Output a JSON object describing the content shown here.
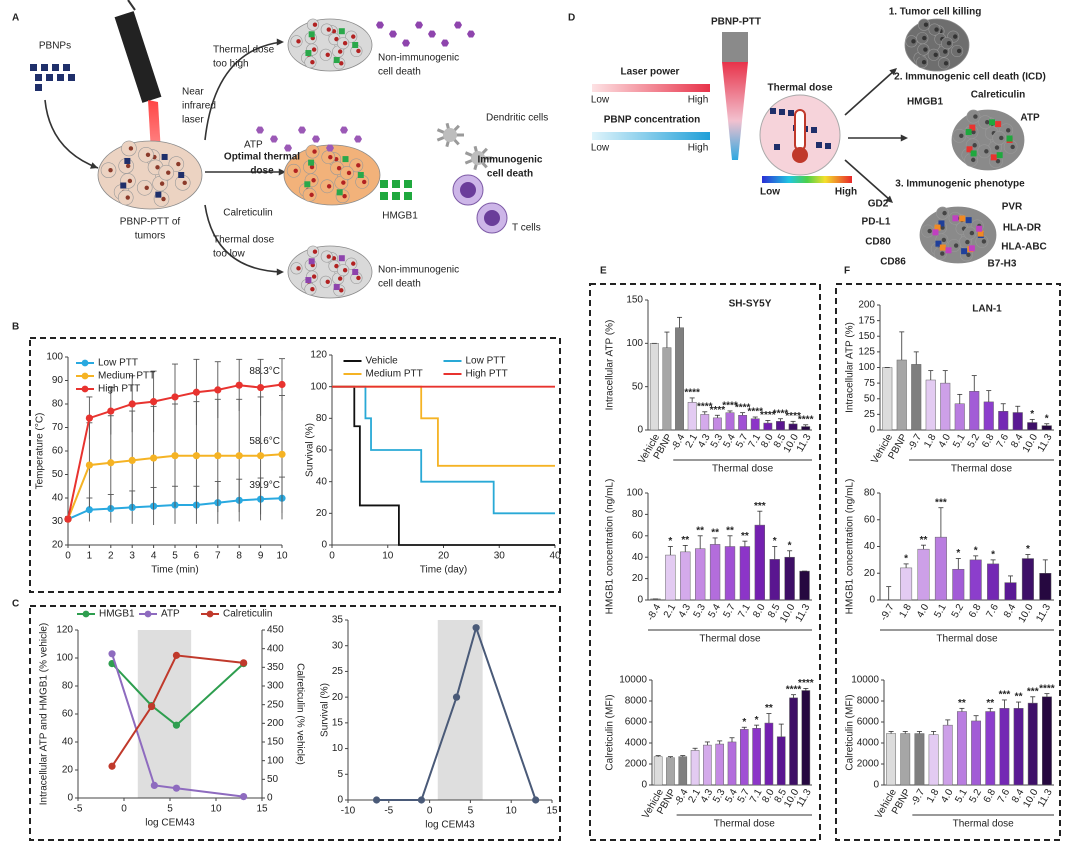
{
  "panel_labels": [
    "A",
    "B",
    "C",
    "D",
    "E",
    "F"
  ],
  "diagram_a": {
    "pbnps": [
      "PBNPs"
    ],
    "laser": [
      "Near",
      "infrared",
      "laser"
    ],
    "too_high": [
      "Thermal dose",
      "too high"
    ],
    "noncd_top": [
      "Non-immunogenic",
      "cell death"
    ],
    "atp": [
      "ATP"
    ],
    "dendritic": [
      "Dendritic cells"
    ],
    "optimal": [
      "Optimal thermal",
      "dose"
    ],
    "icd": [
      "Immunogenic",
      "cell death"
    ],
    "calreticulin": [
      "Calreticulin"
    ],
    "hmgb1": [
      "HMGB1"
    ],
    "tcells": [
      "T cells"
    ],
    "pbnp_ptt": [
      "PBNP-PTT of",
      "tumors"
    ],
    "too_low": [
      "Thermal dose",
      "too low"
    ],
    "noncd_bottom": [
      "Non-immunogenic",
      "cell death"
    ]
  },
  "diagram_d": {
    "device": [
      "PBNP-PTT"
    ],
    "killing": [
      "1. Tumor cell killing"
    ],
    "laser_power": [
      "Laser power"
    ],
    "lp_low": [
      "Low"
    ],
    "lp_high": [
      "High"
    ],
    "conc": [
      "PBNP concentration"
    ],
    "c_low": [
      "Low"
    ],
    "c_high": [
      "High"
    ],
    "thermal": [
      "Thermal dose"
    ],
    "t_low": [
      "Low"
    ],
    "t_high": [
      "High"
    ],
    "icd": [
      "2. Immunogenic cell death (ICD)"
    ],
    "hmgb1": [
      "HMGB1"
    ],
    "calreticulin": [
      "Calreticulin"
    ],
    "atp": [
      "ATP"
    ],
    "phenotype": [
      "3. Immunogenic phenotype"
    ],
    "gd2": [
      "GD2"
    ],
    "pdl1": [
      "PD-L1"
    ],
    "cd80": [
      "CD80"
    ],
    "cd86": [
      "CD86"
    ],
    "pvr": [
      "PVR"
    ],
    "hladr": [
      "HLA-DR"
    ],
    "hlaabc": [
      "HLA-ABC"
    ],
    "b7h3": [
      "B7-H3"
    ]
  },
  "chart_data": [
    {
      "type": "line",
      "xlabel": "Time (min)",
      "ylabel": "Temperature (°C)",
      "legend": "upper left",
      "markers": true,
      "x": [
        0,
        1,
        2,
        3,
        4,
        5,
        6,
        7,
        8,
        9,
        10
      ],
      "xlim": [
        0,
        10
      ],
      "xticks": [
        0,
        1,
        2,
        3,
        4,
        5,
        6,
        7,
        8,
        9,
        10
      ],
      "ylim": [
        20,
        100
      ],
      "yticks": [
        20,
        30,
        40,
        50,
        60,
        70,
        80,
        90,
        100
      ],
      "series": [
        {
          "name": "Low PTT",
          "color": "#29a9e0",
          "values": [
            31,
            35,
            35.5,
            36,
            36.5,
            37,
            37,
            38,
            39,
            39.5,
            39.9
          ],
          "errors": [
            1,
            5,
            6,
            7,
            8,
            8,
            8,
            9,
            9,
            9,
            9
          ]
        },
        {
          "name": "Medium PTT",
          "color": "#f5b324",
          "values": [
            31,
            54,
            55,
            56,
            57,
            58,
            58,
            58,
            58,
            58,
            58.6
          ],
          "errors": [
            1,
            18,
            20,
            21,
            22,
            22,
            23,
            24,
            24,
            25,
            25
          ]
        },
        {
          "name": "High PTT",
          "color": "#e8332f",
          "values": [
            31,
            74,
            77,
            80,
            81,
            83,
            85,
            86,
            88,
            87,
            88.3
          ],
          "errors": [
            1,
            9,
            10,
            12,
            13,
            14,
            14,
            12,
            11,
            12,
            11
          ]
        }
      ],
      "annotations": [
        "39.9°C",
        "58.6°C",
        "88.3°C"
      ]
    },
    {
      "type": "line",
      "step": true,
      "xlabel": "Time (day)",
      "ylabel": "Survival (%)",
      "legend": "upper center",
      "xlim": [
        0,
        40
      ],
      "xticks": [
        0,
        10,
        20,
        30,
        40
      ],
      "ylim": [
        0,
        120
      ],
      "yticks": [
        0,
        20,
        40,
        60,
        80,
        100,
        120
      ],
      "series": [
        {
          "name": "Vehicle",
          "color": "#111111",
          "x": [
            0,
            4,
            5,
            12,
            40
          ],
          "values": [
            100,
            75,
            25,
            0,
            0
          ]
        },
        {
          "name": "Low PTT",
          "color": "#29a9d6",
          "x": [
            0,
            6,
            7,
            16,
            29,
            40
          ],
          "values": [
            100,
            80,
            60,
            40,
            20,
            20
          ]
        },
        {
          "name": "Medium PTT",
          "color": "#f5b324",
          "x": [
            0,
            16,
            19,
            40
          ],
          "values": [
            100,
            80,
            50,
            50
          ]
        },
        {
          "name": "High PTT",
          "color": "#e8332f",
          "x": [
            0,
            40
          ],
          "values": [
            100,
            100
          ]
        }
      ]
    },
    {
      "type": "line",
      "markers": true,
      "xlabel": "log CEM43",
      "ylabel": "Intracellular ATP and HMGB1 (% vehicle)",
      "y2label": "Calreticulin (% vehicle)",
      "legend": "top",
      "highlight_x": [
        1.5,
        7.3
      ],
      "xlim": [
        -5,
        15
      ],
      "xticks": [
        -5,
        0,
        5,
        10,
        15
      ],
      "ylim": [
        0,
        120
      ],
      "yticks": [
        0,
        20,
        40,
        60,
        80,
        100,
        120
      ],
      "y2lim": [
        0,
        450
      ],
      "y2ticks": [
        0,
        50,
        100,
        150,
        200,
        250,
        300,
        350,
        400,
        450
      ],
      "series": [
        {
          "name": "HMGB1",
          "color": "#2e9e4f",
          "x": [
            -1.3,
            3,
            5.7,
            13
          ],
          "values": [
            96,
            66,
            52,
            96
          ]
        },
        {
          "name": "ATP",
          "color": "#8e6bbf",
          "x": [
            -1.3,
            3.3,
            5.7,
            13
          ],
          "values": [
            103,
            9,
            7,
            1
          ]
        },
        {
          "name": "Calreticulin",
          "color": "#c0392b",
          "axis": "y2",
          "x": [
            -1.3,
            3,
            5.7,
            13
          ],
          "values": [
            85,
            245,
            382,
            362
          ]
        }
      ]
    },
    {
      "type": "line",
      "markers": true,
      "xlabel": "log CEM43",
      "ylabel": "Survival (%)",
      "highlight_x": [
        1,
        6.5
      ],
      "xlim": [
        -10,
        15
      ],
      "xticks": [
        -10,
        -5,
        0,
        5,
        10,
        15
      ],
      "ylim": [
        0,
        35
      ],
      "yticks": [
        0,
        5,
        10,
        15,
        20,
        25,
        30,
        35
      ],
      "series": [
        {
          "name": null,
          "color": "#4a5a78",
          "x": [
            -6.5,
            -1,
            3.3,
            5.7,
            13
          ],
          "values": [
            0,
            0,
            20,
            33.5,
            0
          ]
        }
      ]
    },
    {
      "type": "bar",
      "title": "SH-SY5Y",
      "ylabel": "Intracellular ATP (%)",
      "xlabel": "Thermal dose",
      "categories": [
        "Vehicle",
        "PBNP",
        "-8.4",
        "2.1",
        "4.3",
        "5.3",
        "5.4",
        "5.7",
        "7.1",
        "8.0",
        "8.5",
        "10.0",
        "11.3"
      ],
      "values": [
        100,
        95,
        118,
        32,
        18,
        14,
        20,
        17,
        13,
        8,
        10,
        7,
        4
      ],
      "errors": [
        0,
        18,
        12,
        5,
        3,
        3,
        2,
        3,
        2,
        3,
        3,
        3,
        2
      ],
      "annotations": [
        null,
        null,
        null,
        "****",
        "****",
        "****",
        "****",
        "****",
        "****",
        "****",
        "****",
        "****",
        "****"
      ],
      "colors": [
        "#dcdcdc",
        "#a6a6a6",
        "#7f7f7f",
        "#e3cbf2",
        "#d4aaeb",
        "#c48ae3",
        "#b36ddc",
        "#a050d4",
        "#8c35c8",
        "#7420b0",
        "#5a1690",
        "#3e0f66",
        "#260840"
      ],
      "ylim": [
        0,
        150
      ],
      "yticks": [
        0,
        50,
        100,
        150
      ]
    },
    {
      "type": "bar",
      "ylabel": "HMGB1 concentration (ng/mL)",
      "xlabel": "Thermal dose",
      "categories": [
        "-8.4",
        "2.1",
        "4.3",
        "5.3",
        "5.4",
        "5.7",
        "7.1",
        "8.0",
        "8.5",
        "10.0",
        "11.3"
      ],
      "values": [
        1,
        42,
        45,
        48,
        52,
        50,
        50,
        70,
        38,
        40,
        27
      ],
      "errors": [
        0,
        8,
        6,
        12,
        6,
        10,
        5,
        13,
        12,
        6,
        0
      ],
      "annotations": [
        null,
        "*",
        "**",
        "**",
        "**",
        "**",
        "**",
        "***",
        "*",
        "*",
        null
      ],
      "colors": [
        "#7f7f7f",
        "#e3cbf2",
        "#d4aaeb",
        "#c48ae3",
        "#b36ddc",
        "#a050d4",
        "#8c35c8",
        "#7420b0",
        "#5a1690",
        "#3e0f66",
        "#260840"
      ],
      "ylim": [
        0,
        100
      ],
      "yticks": [
        0,
        20,
        40,
        60,
        80,
        100
      ]
    },
    {
      "type": "bar",
      "ylabel": "Calreticulin (MFI)",
      "xlabel": "Thermal dose",
      "categories": [
        "Vehicle",
        "PBNP",
        "-8.4",
        "2.1",
        "4.3",
        "5.3",
        "5.4",
        "5.7",
        "7.1",
        "8.0",
        "8.5",
        "10.0",
        "11.3"
      ],
      "values": [
        2700,
        2600,
        2700,
        3300,
        3800,
        3900,
        4100,
        5300,
        5400,
        5900,
        4600,
        8300,
        9000
      ],
      "errors": [
        100,
        100,
        100,
        200,
        300,
        300,
        400,
        200,
        300,
        900,
        1200,
        300,
        200
      ],
      "annotations": [
        null,
        null,
        null,
        null,
        null,
        null,
        null,
        "*",
        "*",
        "**",
        null,
        "****",
        "****"
      ],
      "colors": [
        "#dcdcdc",
        "#a6a6a6",
        "#7f7f7f",
        "#e3cbf2",
        "#d4aaeb",
        "#c48ae3",
        "#b36ddc",
        "#a050d4",
        "#8c35c8",
        "#7420b0",
        "#5a1690",
        "#3e0f66",
        "#260840"
      ],
      "ylim": [
        0,
        10000
      ],
      "yticks": [
        0,
        2000,
        4000,
        6000,
        8000,
        10000
      ]
    },
    {
      "type": "bar",
      "title": "LAN-1",
      "ylabel": "Intracellular ATP (%)",
      "xlabel": "Thermal dose",
      "categories": [
        "Vehicle",
        "PBNP",
        "-9.7",
        "1.8",
        "4.0",
        "5.1",
        "5.2",
        "6.8",
        "7.6",
        "8.4",
        "10.0",
        "11.3"
      ],
      "values": [
        100,
        112,
        105,
        80,
        75,
        42,
        62,
        45,
        30,
        28,
        12,
        7
      ],
      "errors": [
        0,
        45,
        20,
        15,
        20,
        15,
        25,
        18,
        12,
        10,
        5,
        3
      ],
      "annotations": [
        null,
        null,
        null,
        null,
        null,
        null,
        null,
        null,
        null,
        null,
        "*",
        "*"
      ],
      "colors": [
        "#dcdcdc",
        "#a6a6a6",
        "#7f7f7f",
        "#e3cbf2",
        "#cda0e8",
        "#b97de0",
        "#a25cd6",
        "#8c3ecc",
        "#7428b4",
        "#5a1a94",
        "#3e1068",
        "#260840"
      ],
      "ylim": [
        0,
        200
      ],
      "yticks": [
        0,
        25,
        50,
        75,
        100,
        125,
        150,
        175,
        200
      ]
    },
    {
      "type": "bar",
      "ylabel": "HMGB1 concentration (ng/mL)",
      "xlabel": "Thermal dose",
      "categories": [
        "-9.7",
        "1.8",
        "4.0",
        "5.1",
        "5.2",
        "6.8",
        "7.6",
        "8.4",
        "10.0",
        "11.3"
      ],
      "values": [
        0,
        24,
        38,
        47,
        23,
        30,
        27,
        13,
        31,
        20
      ],
      "errors": [
        10,
        3,
        3,
        22,
        8,
        3,
        3,
        5,
        3,
        10
      ],
      "annotations": [
        null,
        "*",
        "**",
        "***",
        "*",
        "*",
        "*",
        null,
        "*",
        null
      ],
      "colors": [
        "#7f7f7f",
        "#e3cbf2",
        "#cda0e8",
        "#b97de0",
        "#a25cd6",
        "#8c3ecc",
        "#7428b4",
        "#5a1a94",
        "#3e1068",
        "#260840"
      ],
      "ylim": [
        0,
        80
      ],
      "yticks": [
        0,
        20,
        40,
        60,
        80
      ]
    },
    {
      "type": "bar",
      "ylabel": "Calreticulin (MFI)",
      "xlabel": "Thermal dose",
      "categories": [
        "Vehicle",
        "PBNP",
        "-9.7",
        "1.8",
        "4.0",
        "5.1",
        "5.2",
        "6.8",
        "7.6",
        "8.4",
        "10.0",
        "11.3"
      ],
      "values": [
        4900,
        4900,
        4900,
        4800,
        5700,
        7000,
        6100,
        7000,
        7300,
        7300,
        7800,
        8400
      ],
      "errors": [
        200,
        200,
        200,
        300,
        500,
        300,
        500,
        300,
        800,
        600,
        600,
        300
      ],
      "annotations": [
        null,
        null,
        null,
        null,
        null,
        "**",
        null,
        "**",
        "***",
        "**",
        "***",
        "****"
      ],
      "colors": [
        "#dcdcdc",
        "#a6a6a6",
        "#7f7f7f",
        "#e3cbf2",
        "#cda0e8",
        "#b97de0",
        "#a25cd6",
        "#8c3ecc",
        "#7428b4",
        "#5a1a94",
        "#3e1068",
        "#260840"
      ],
      "ylim": [
        0,
        10000
      ],
      "yticks": [
        0,
        2000,
        4000,
        6000,
        8000,
        10000
      ]
    }
  ]
}
